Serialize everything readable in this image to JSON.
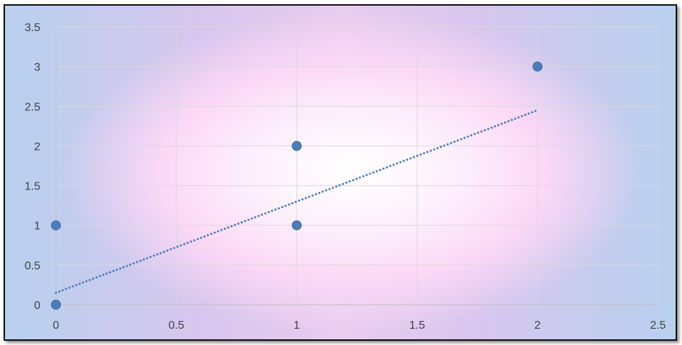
{
  "chart_data": {
    "type": "scatter",
    "title": "",
    "xlabel": "",
    "ylabel": "",
    "xlim": [
      0,
      2.5
    ],
    "ylim": [
      0,
      3.5
    ],
    "x_ticks": [
      "0",
      "0.5",
      "1",
      "1.5",
      "2",
      "2.5"
    ],
    "y_ticks": [
      "0",
      "0.5",
      "1",
      "1.5",
      "2",
      "2.5",
      "3",
      "3.5"
    ],
    "grid": true,
    "legend": "none",
    "series": [
      {
        "points": [
          {
            "x": 0,
            "y": 0
          },
          {
            "x": 0,
            "y": 1
          },
          {
            "x": 1,
            "y": 1
          },
          {
            "x": 1,
            "y": 2
          },
          {
            "x": 2,
            "y": 3
          }
        ],
        "color": "#4a7ebb",
        "trendline": {
          "type": "linear",
          "dotted": true,
          "from": {
            "x": 0,
            "y": 0.15
          },
          "to": {
            "x": 2,
            "y": 2.45
          }
        }
      }
    ],
    "colors": {
      "gridline": "#d9d9d9",
      "axis_line": "#bfbfbf",
      "tick_text": "#404040"
    }
  }
}
